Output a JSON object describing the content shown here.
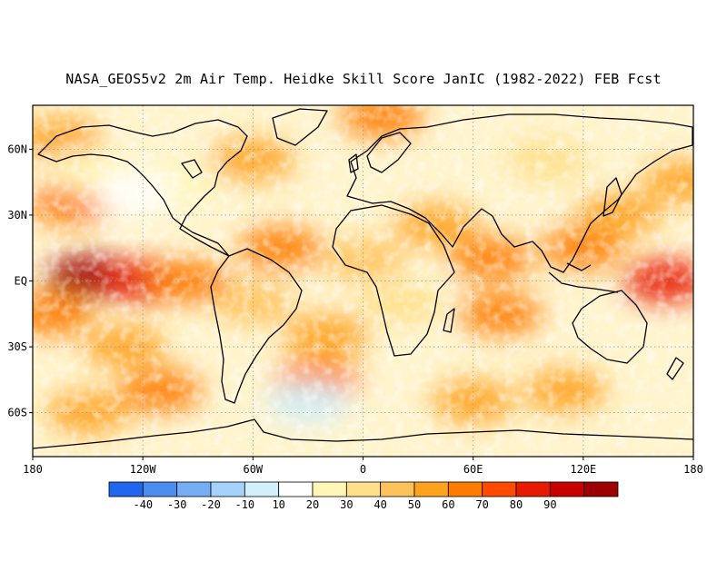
{
  "title": "NASA_GEOS5v2 2m Air Temp. Heidke Skill Score JanIC (1982-2022) FEB Fcst",
  "map": {
    "lon_range": [
      -180,
      180
    ],
    "lat_range": [
      -80,
      80
    ],
    "lon_ticks": [
      {
        "value": -180,
        "label": "180"
      },
      {
        "value": -120,
        "label": "120W"
      },
      {
        "value": -60,
        "label": "60W"
      },
      {
        "value": 0,
        "label": "0"
      },
      {
        "value": 60,
        "label": "60E"
      },
      {
        "value": 120,
        "label": "120E"
      },
      {
        "value": 180,
        "label": "180"
      }
    ],
    "lat_ticks": [
      {
        "value": 60,
        "label": "60N"
      },
      {
        "value": 30,
        "label": "30N"
      },
      {
        "value": 0,
        "label": "EQ"
      },
      {
        "value": -30,
        "label": "30S"
      },
      {
        "value": -60,
        "label": "60S"
      }
    ],
    "gridlines": "dotted",
    "coastlines": true
  },
  "colorbar": {
    "bins": [
      {
        "color": "#2166ee",
        "label": ""
      },
      {
        "color": "#4a8ef2",
        "label": "-40"
      },
      {
        "color": "#76aef6",
        "label": "-30"
      },
      {
        "color": "#a4d2fa",
        "label": "-20"
      },
      {
        "color": "#d0f0fc",
        "label": "-10"
      },
      {
        "color": "#ffffff",
        "label": "10"
      },
      {
        "color": "#fff6b8",
        "label": "20"
      },
      {
        "color": "#ffe08a",
        "label": "30"
      },
      {
        "color": "#ffc25a",
        "label": "40"
      },
      {
        "color": "#ffa21e",
        "label": "50"
      },
      {
        "color": "#ff7c00",
        "label": "60"
      },
      {
        "color": "#ff4a00",
        "label": "70"
      },
      {
        "color": "#e81a00",
        "label": "80"
      },
      {
        "color": "#c80000",
        "label": "90"
      },
      {
        "color": "#9c0000",
        "label": ""
      }
    ]
  },
  "field_regions": [
    {
      "lon": -150,
      "lat": 2,
      "value": 92
    },
    {
      "lon": -120,
      "lat": 0,
      "value": 75
    },
    {
      "lon": -95,
      "lat": 0,
      "value": 55
    },
    {
      "lon": 165,
      "lat": 0,
      "value": 75
    },
    {
      "lon": -160,
      "lat": 35,
      "value": 50
    },
    {
      "lon": -170,
      "lat": -15,
      "value": 55
    },
    {
      "lon": -130,
      "lat": -30,
      "value": 45
    },
    {
      "lon": -110,
      "lat": -50,
      "value": 50
    },
    {
      "lon": -60,
      "lat": 55,
      "value": 45
    },
    {
      "lon": -45,
      "lat": 15,
      "value": 50
    },
    {
      "lon": -20,
      "lat": -25,
      "value": 45
    },
    {
      "lon": -25,
      "lat": -45,
      "value": 50
    },
    {
      "lon": 10,
      "lat": 75,
      "value": 55
    },
    {
      "lon": 40,
      "lat": 25,
      "value": 45
    },
    {
      "lon": 70,
      "lat": 10,
      "value": 50
    },
    {
      "lon": 75,
      "lat": -15,
      "value": 50
    },
    {
      "lon": 120,
      "lat": 15,
      "value": 55
    },
    {
      "lon": 140,
      "lat": 30,
      "value": 45
    },
    {
      "lon": 175,
      "lat": 45,
      "value": 45
    },
    {
      "lon": 110,
      "lat": -50,
      "value": 45
    },
    {
      "lon": 60,
      "lat": -55,
      "value": 40
    },
    {
      "lon": -150,
      "lat": -60,
      "value": 40
    },
    {
      "lon": 0,
      "lat": 10,
      "value": 30
    },
    {
      "lon": 20,
      "lat": -10,
      "value": 25
    },
    {
      "lon": -60,
      "lat": -10,
      "value": 30
    },
    {
      "lon": 100,
      "lat": 55,
      "value": 20
    },
    {
      "lon": -100,
      "lat": 45,
      "value": 10
    },
    {
      "lon": -165,
      "lat": 65,
      "value": 45
    },
    {
      "lon": -150,
      "lat": 50,
      "value": 12
    },
    {
      "lon": -30,
      "lat": -55,
      "value": -15
    },
    {
      "lon": -125,
      "lat": 40,
      "value": -10
    }
  ]
}
